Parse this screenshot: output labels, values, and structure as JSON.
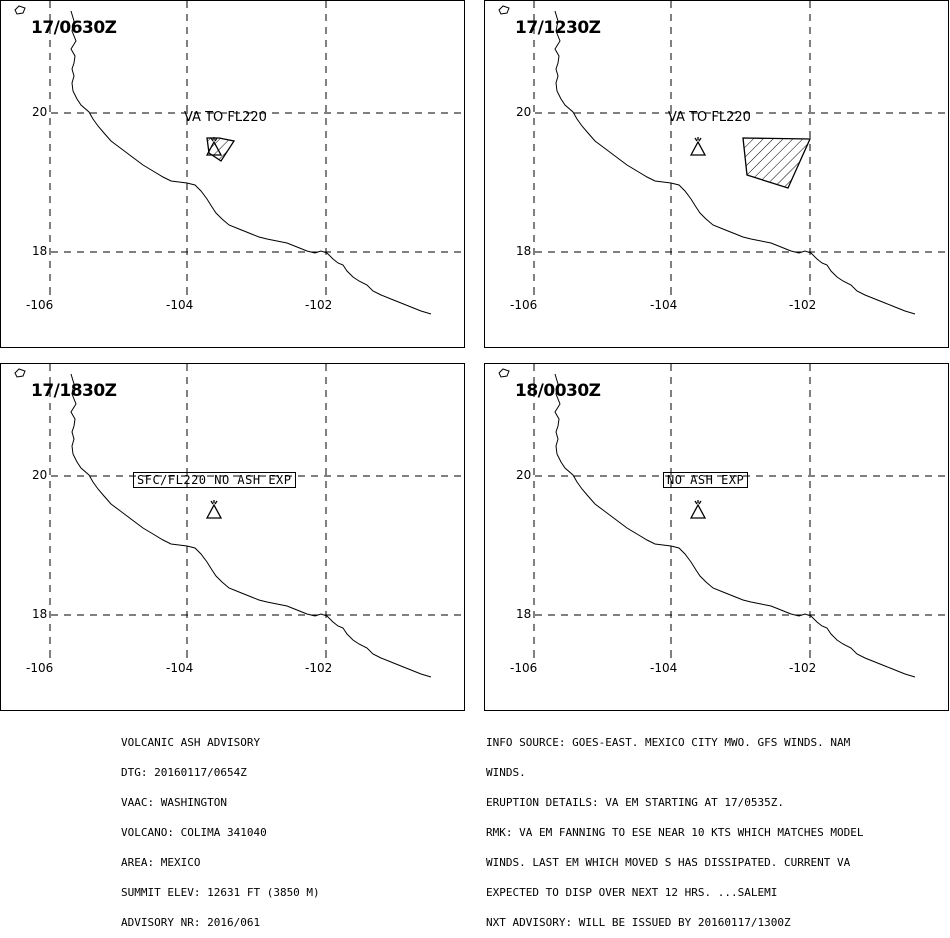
{
  "panels": [
    {
      "time": "17/0630Z",
      "label": "VA TO FL220",
      "boxed": false
    },
    {
      "time": "17/1230Z",
      "label": "VA TO FL220",
      "boxed": false
    },
    {
      "time": "17/1830Z",
      "label": "SFC/FL220 NO ASH EXP",
      "boxed": true
    },
    {
      "time": "18/0030Z",
      "label": "NO ASH EXP",
      "boxed": true
    }
  ],
  "axes": {
    "lat": [
      "20",
      "18"
    ],
    "lon": [
      "-106",
      "-104",
      "-102"
    ]
  },
  "advisory": {
    "left": [
      "VOLCANIC ASH ADVISORY",
      "DTG: 20160117/0654Z",
      "VAAC: WASHINGTON",
      "VOLCANO: COLIMA 341040",
      "AREA: MEXICO",
      "SUMMIT ELEV: 12631 FT (3850 M)",
      "ADVISORY NR: 2016/061"
    ],
    "right": [
      "INFO SOURCE: GOES-EAST. MEXICO CITY MWO. GFS WINDS. NAM",
      "WINDS.",
      "ERUPTION DETAILS: VA EM STARTING AT 17/0535Z.",
      "RMK: VA EM FANNING TO ESE NEAR 10 KTS WHICH MATCHES MODEL",
      "WINDS. LAST EM WHICH MOVED S HAS DISSIPATED. CURRENT VA",
      "EXPECTED TO DISP OVER NEXT 12 HRS. ...SALEMI",
      "NXT ADVISORY: WILL BE ISSUED BY 20160117/1300Z"
    ]
  },
  "colors": {
    "line": "#000000",
    "background": "#ffffff"
  },
  "icons": {
    "volcano": "volcano-icon"
  }
}
